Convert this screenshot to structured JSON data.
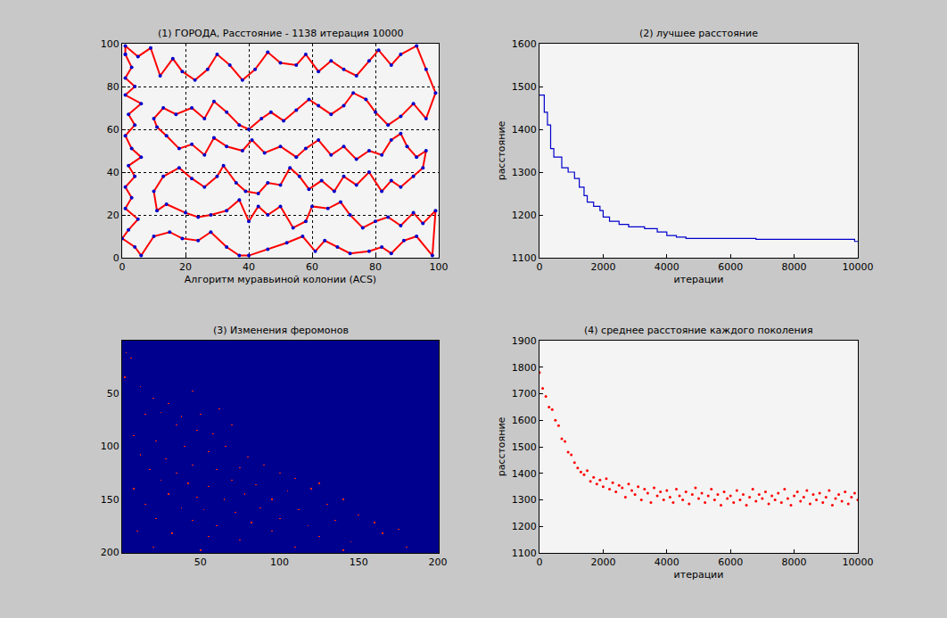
{
  "chart_data": [
    {
      "type": "line",
      "title": "(1) ГОРОДА, Расстояние - 1138 итерация 10000",
      "x_label": "Алгоритм муравьиной колонии (ACS)",
      "xlim": [
        0,
        100
      ],
      "xticks": [
        0,
        20,
        40,
        60,
        80,
        100
      ],
      "ylim": [
        0,
        100
      ],
      "yticks": [
        0,
        20,
        40,
        60,
        80,
        100
      ],
      "grid": true,
      "color": "#ff0000",
      "marker": "dot",
      "closed": true,
      "points": [
        [
          1,
          95
        ],
        [
          3,
          89
        ],
        [
          1,
          84
        ],
        [
          4,
          80
        ],
        [
          1,
          76
        ],
        [
          6,
          72
        ],
        [
          2,
          67
        ],
        [
          4,
          62
        ],
        [
          1,
          57
        ],
        [
          3,
          51
        ],
        [
          6,
          47
        ],
        [
          2,
          43
        ],
        [
          4,
          38
        ],
        [
          1,
          33
        ],
        [
          3,
          28
        ],
        [
          1,
          23
        ],
        [
          5,
          18
        ],
        [
          2,
          13
        ],
        [
          0,
          9
        ],
        [
          4,
          5
        ],
        [
          6,
          1
        ],
        [
          10,
          10
        ],
        [
          15,
          12
        ],
        [
          19,
          9
        ],
        [
          24,
          8
        ],
        [
          28,
          12
        ],
        [
          33,
          5
        ],
        [
          37,
          1
        ],
        [
          40,
          1
        ],
        [
          46,
          4
        ],
        [
          52,
          7
        ],
        [
          57,
          10
        ],
        [
          61,
          3
        ],
        [
          64,
          8
        ],
        [
          68,
          5
        ],
        [
          72,
          2
        ],
        [
          78,
          3
        ],
        [
          82,
          5
        ],
        [
          85,
          2
        ],
        [
          89,
          8
        ],
        [
          93,
          10
        ],
        [
          98,
          1
        ],
        [
          99,
          22
        ],
        [
          95,
          16
        ],
        [
          92,
          21
        ],
        [
          88,
          15
        ],
        [
          84,
          19
        ],
        [
          80,
          17
        ],
        [
          76,
          14
        ],
        [
          72,
          20
        ],
        [
          69,
          26
        ],
        [
          65,
          23
        ],
        [
          60,
          24
        ],
        [
          58,
          17
        ],
        [
          54,
          14
        ],
        [
          50,
          24
        ],
        [
          46,
          20
        ],
        [
          43,
          24
        ],
        [
          40,
          17
        ],
        [
          37,
          27
        ],
        [
          33,
          22
        ],
        [
          28,
          20
        ],
        [
          24,
          19
        ],
        [
          20,
          21
        ],
        [
          14,
          25
        ],
        [
          11,
          22
        ],
        [
          10,
          31
        ],
        [
          13,
          38
        ],
        [
          18,
          42
        ],
        [
          22,
          37
        ],
        [
          26,
          33
        ],
        [
          30,
          38
        ],
        [
          32,
          43
        ],
        [
          36,
          35
        ],
        [
          39,
          31
        ],
        [
          43,
          30
        ],
        [
          46,
          35
        ],
        [
          50,
          34
        ],
        [
          53,
          42
        ],
        [
          56,
          38
        ],
        [
          59,
          32
        ],
        [
          63,
          36
        ],
        [
          67,
          31
        ],
        [
          70,
          38
        ],
        [
          74,
          34
        ],
        [
          78,
          40
        ],
        [
          82,
          31
        ],
        [
          85,
          36
        ],
        [
          88,
          33
        ],
        [
          92,
          38
        ],
        [
          95,
          42
        ],
        [
          96,
          50
        ],
        [
          93,
          47
        ],
        [
          90,
          52
        ],
        [
          88,
          58
        ],
        [
          85,
          55
        ],
        [
          82,
          48
        ],
        [
          78,
          50
        ],
        [
          74,
          46
        ],
        [
          70,
          52
        ],
        [
          66,
          48
        ],
        [
          62,
          55
        ],
        [
          58,
          51
        ],
        [
          55,
          47
        ],
        [
          50,
          52
        ],
        [
          45,
          49
        ],
        [
          41,
          55
        ],
        [
          38,
          50
        ],
        [
          33,
          52
        ],
        [
          29,
          56
        ],
        [
          26,
          48
        ],
        [
          22,
          53
        ],
        [
          18,
          51
        ],
        [
          14,
          57
        ],
        [
          11,
          61
        ],
        [
          10,
          65
        ],
        [
          13,
          70
        ],
        [
          17,
          67
        ],
        [
          22,
          70
        ],
        [
          26,
          65
        ],
        [
          29,
          73
        ],
        [
          33,
          68
        ],
        [
          37,
          62
        ],
        [
          40,
          60
        ],
        [
          44,
          65
        ],
        [
          47,
          68
        ],
        [
          51,
          64
        ],
        [
          55,
          69
        ],
        [
          59,
          74
        ],
        [
          62,
          71
        ],
        [
          66,
          67
        ],
        [
          70,
          71
        ],
        [
          73,
          77
        ],
        [
          77,
          74
        ],
        [
          80,
          68
        ],
        [
          84,
          62
        ],
        [
          88,
          66
        ],
        [
          92,
          72
        ],
        [
          96,
          65
        ],
        [
          99,
          77
        ],
        [
          96,
          88
        ],
        [
          93,
          99
        ],
        [
          88,
          95
        ],
        [
          85,
          90
        ],
        [
          81,
          97
        ],
        [
          78,
          92
        ],
        [
          74,
          85
        ],
        [
          70,
          88
        ],
        [
          66,
          92
        ],
        [
          62,
          87
        ],
        [
          58,
          95
        ],
        [
          55,
          90
        ],
        [
          50,
          91
        ],
        [
          46,
          96
        ],
        [
          42,
          88
        ],
        [
          38,
          83
        ],
        [
          34,
          90
        ],
        [
          30,
          95
        ],
        [
          27,
          88
        ],
        [
          23,
          83
        ],
        [
          19,
          87
        ],
        [
          16,
          93
        ],
        [
          12,
          85
        ],
        [
          9,
          98
        ],
        [
          5,
          94
        ],
        [
          1,
          99
        ]
      ]
    },
    {
      "type": "line",
      "title": "(2) лучшее расстояние",
      "x_label": "итерации",
      "y_label": "расстояние",
      "xlim": [
        0,
        10000
      ],
      "xticks": [
        0,
        2000,
        4000,
        6000,
        8000,
        10000
      ],
      "ylim": [
        1100,
        1600
      ],
      "yticks": [
        1100,
        1200,
        1300,
        1400,
        1500,
        1600
      ],
      "grid": false,
      "color": "#0000cc",
      "line_style": "step",
      "x": [
        0,
        150,
        250,
        350,
        450,
        700,
        900,
        1100,
        1250,
        1400,
        1500,
        1700,
        1900,
        2000,
        2200,
        2500,
        2800,
        3300,
        3700,
        4000,
        4300,
        4600,
        6800,
        9900,
        10000
      ],
      "values": [
        1480,
        1440,
        1410,
        1355,
        1335,
        1310,
        1300,
        1285,
        1265,
        1245,
        1230,
        1220,
        1210,
        1195,
        1185,
        1178,
        1172,
        1168,
        1160,
        1152,
        1148,
        1145,
        1143,
        1138,
        1138
      ]
    },
    {
      "type": "heatmap",
      "title": "(3) Изменения феромонов",
      "xlim": [
        0.5,
        200.5
      ],
      "xticks": [
        50,
        100,
        150,
        200
      ],
      "ylim": [
        200.5,
        0.5
      ],
      "yticks": [
        50,
        100,
        150,
        200
      ],
      "grid": false,
      "size": 200,
      "fill": 0,
      "zlim": [
        0,
        1
      ],
      "cells": [
        [
          3,
          12,
          1
        ],
        [
          6,
          17,
          1
        ],
        [
          2,
          35,
          1
        ],
        [
          12,
          44,
          1
        ],
        [
          20,
          55,
          1
        ],
        [
          30,
          60,
          1
        ],
        [
          45,
          48,
          1
        ],
        [
          15,
          70,
          1
        ],
        [
          25,
          68,
          1
        ],
        [
          38,
          72,
          1
        ],
        [
          50,
          70,
          1
        ],
        [
          62,
          65,
          1
        ],
        [
          35,
          80,
          1
        ],
        [
          48,
          85,
          1
        ],
        [
          8,
          90,
          1
        ],
        [
          22,
          95,
          1
        ],
        [
          58,
          88,
          1
        ],
        [
          70,
          80,
          1
        ],
        [
          40,
          100,
          1
        ],
        [
          55,
          105,
          1
        ],
        [
          12,
          108,
          1
        ],
        [
          28,
          112,
          1
        ],
        [
          66,
          100,
          1
        ],
        [
          80,
          110,
          1
        ],
        [
          45,
          118,
          1
        ],
        [
          18,
          122,
          1
        ],
        [
          35,
          125,
          1
        ],
        [
          60,
          122,
          1
        ],
        [
          75,
          120,
          1
        ],
        [
          90,
          118,
          1
        ],
        [
          100,
          125,
          1
        ],
        [
          25,
          132,
          1
        ],
        [
          42,
          135,
          1
        ],
        [
          55,
          138,
          1
        ],
        [
          70,
          132,
          1
        ],
        [
          85,
          136,
          1
        ],
        [
          110,
          130,
          1
        ],
        [
          120,
          140,
          1
        ],
        [
          8,
          140,
          1
        ],
        [
          30,
          145,
          1
        ],
        [
          48,
          148,
          1
        ],
        [
          65,
          150,
          1
        ],
        [
          78,
          145,
          1
        ],
        [
          95,
          150,
          1
        ],
        [
          105,
          142,
          1
        ],
        [
          125,
          135,
          1
        ],
        [
          15,
          155,
          1
        ],
        [
          38,
          158,
          1
        ],
        [
          52,
          160,
          1
        ],
        [
          72,
          162,
          1
        ],
        [
          88,
          158,
          1
        ],
        [
          112,
          160,
          1
        ],
        [
          130,
          155,
          1
        ],
        [
          140,
          150,
          1
        ],
        [
          22,
          168,
          1
        ],
        [
          45,
          170,
          1
        ],
        [
          60,
          175,
          1
        ],
        [
          82,
          172,
          1
        ],
        [
          100,
          168,
          1
        ],
        [
          118,
          175,
          1
        ],
        [
          135,
          170,
          1
        ],
        [
          150,
          165,
          1
        ],
        [
          160,
          172,
          1
        ],
        [
          10,
          180,
          1
        ],
        [
          32,
          182,
          1
        ],
        [
          55,
          185,
          1
        ],
        [
          75,
          188,
          1
        ],
        [
          95,
          180,
          1
        ],
        [
          125,
          185,
          1
        ],
        [
          145,
          190,
          1
        ],
        [
          165,
          182,
          1
        ],
        [
          180,
          195,
          1
        ],
        [
          20,
          195,
          1
        ],
        [
          50,
          198,
          1
        ],
        [
          110,
          195,
          1
        ],
        [
          140,
          198,
          1
        ],
        [
          175,
          178,
          1
        ]
      ]
    },
    {
      "type": "scatter",
      "title": "(4) среднее расстояние каждого поколения",
      "x_label": "итерации",
      "y_label": "расстояние",
      "xlim": [
        0,
        10000
      ],
      "xticks": [
        0,
        2000,
        4000,
        6000,
        8000,
        10000
      ],
      "ylim": [
        1100,
        1900
      ],
      "yticks": [
        1100,
        1200,
        1300,
        1400,
        1500,
        1600,
        1700,
        1800,
        1900
      ],
      "grid": false,
      "color": "#ff0000",
      "marker": "dot",
      "x": [
        0,
        100,
        200,
        300,
        400,
        500,
        600,
        700,
        800,
        900,
        1000,
        1100,
        1200,
        1300,
        1400,
        1500,
        1600,
        1700,
        1800,
        1900,
        2000,
        2100,
        2200,
        2300,
        2400,
        2500,
        2600,
        2700,
        2800,
        2900,
        3000,
        3100,
        3200,
        3300,
        3400,
        3500,
        3600,
        3700,
        3800,
        3900,
        4000,
        4100,
        4200,
        4300,
        4400,
        4500,
        4600,
        4700,
        4800,
        4900,
        5000,
        5100,
        5200,
        5300,
        5400,
        5500,
        5600,
        5700,
        5800,
        5900,
        6000,
        6100,
        6200,
        6300,
        6400,
        6500,
        6600,
        6700,
        6800,
        6900,
        7000,
        7100,
        7200,
        7300,
        7400,
        7500,
        7600,
        7700,
        7800,
        7900,
        8000,
        8100,
        8200,
        8300,
        8400,
        8500,
        8600,
        8700,
        8800,
        8900,
        9000,
        9100,
        9200,
        9300,
        9400,
        9500,
        9600,
        9700,
        9800,
        9900,
        10000
      ],
      "values": [
        1780,
        1720,
        1690,
        1650,
        1640,
        1600,
        1580,
        1530,
        1520,
        1480,
        1470,
        1440,
        1420,
        1405,
        1395,
        1410,
        1370,
        1385,
        1360,
        1375,
        1350,
        1380,
        1340,
        1365,
        1330,
        1355,
        1345,
        1310,
        1360,
        1335,
        1320,
        1350,
        1300,
        1340,
        1325,
        1290,
        1345,
        1315,
        1330,
        1300,
        1335,
        1310,
        1290,
        1340,
        1315,
        1300,
        1330,
        1285,
        1320,
        1345,
        1305,
        1325,
        1290,
        1315,
        1340,
        1300,
        1320,
        1280,
        1330,
        1305,
        1315,
        1290,
        1335,
        1300,
        1320,
        1280,
        1310,
        1340,
        1295,
        1320,
        1305,
        1330,
        1285,
        1315,
        1300,
        1325,
        1290,
        1340,
        1305,
        1280,
        1315,
        1330,
        1295,
        1310,
        1335,
        1285,
        1320,
        1300,
        1325,
        1290,
        1310,
        1335,
        1280,
        1305,
        1320,
        1295,
        1330,
        1285,
        1310,
        1325,
        1300
      ]
    }
  ]
}
